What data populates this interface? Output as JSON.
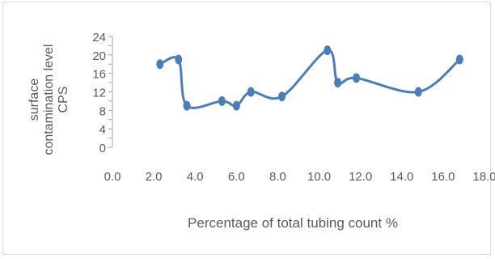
{
  "chart_data": {
    "type": "scatter",
    "line_style": "smoothed",
    "marker": "circle",
    "color": "#4a7ebb",
    "xlabel": "Percentage of total tubing count %",
    "ylabel_lines": [
      "surface",
      "contamination level",
      "CPS"
    ],
    "xlim": [
      0,
      18
    ],
    "ylim": [
      0,
      24
    ],
    "x_ticks": [
      "0.0",
      "2.0",
      "4.0",
      "6.0",
      "8.0",
      "10.0",
      "12.0",
      "14.0",
      "16.0",
      "18.0"
    ],
    "y_ticks": [
      "0",
      "4",
      "8",
      "12",
      "16",
      "20",
      "24"
    ],
    "y_minor_step": 2,
    "points": [
      {
        "x": 2.3,
        "y": 18
      },
      {
        "x": 3.2,
        "y": 19
      },
      {
        "x": 3.6,
        "y": 9
      },
      {
        "x": 5.3,
        "y": 10
      },
      {
        "x": 6.0,
        "y": 9
      },
      {
        "x": 6.7,
        "y": 12
      },
      {
        "x": 8.2,
        "y": 11
      },
      {
        "x": 10.4,
        "y": 21
      },
      {
        "x": 10.9,
        "y": 14
      },
      {
        "x": 11.8,
        "y": 15
      },
      {
        "x": 14.8,
        "y": 12
      },
      {
        "x": 16.8,
        "y": 19
      }
    ]
  }
}
